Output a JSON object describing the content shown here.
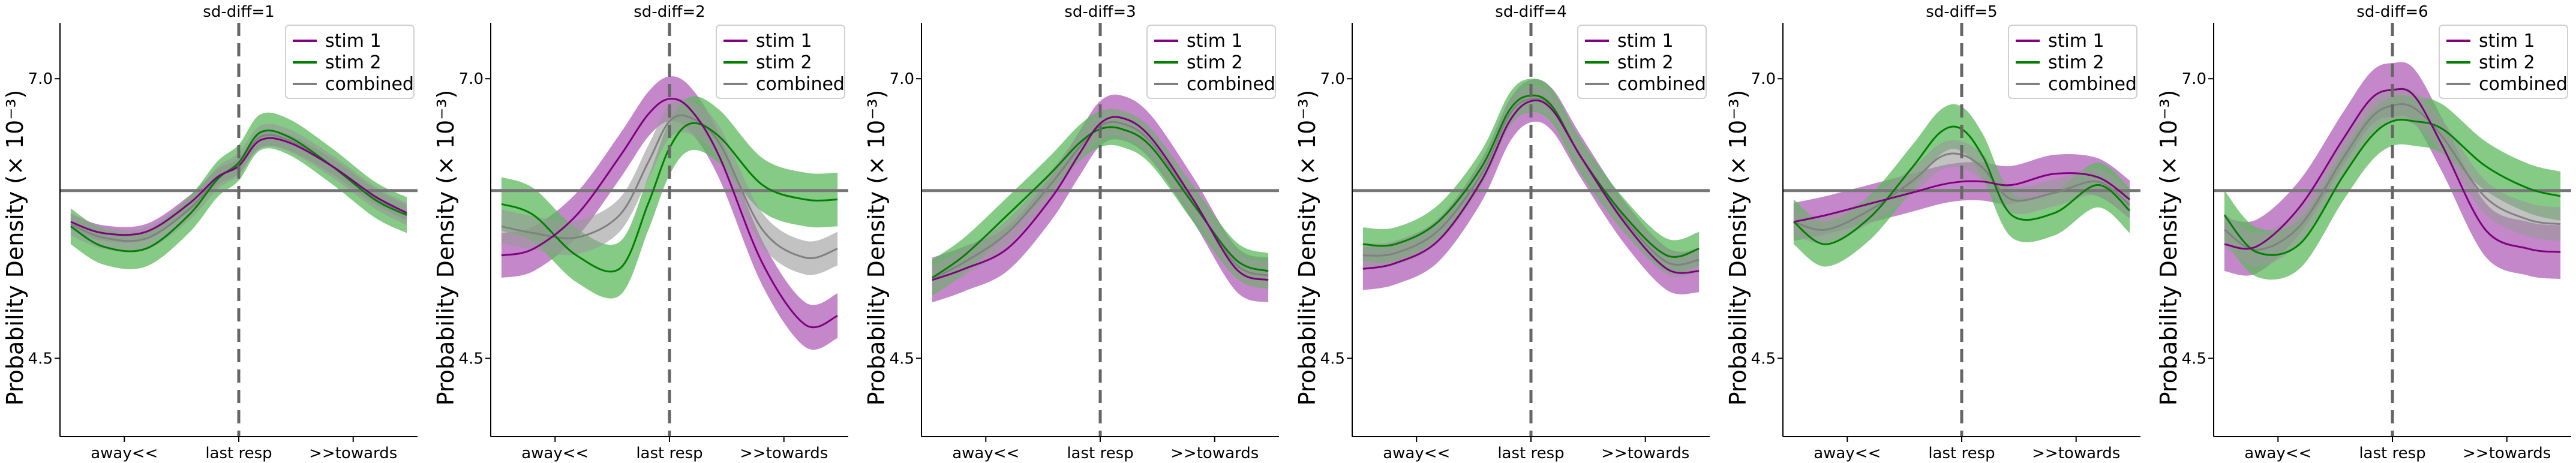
{
  "chart_data": {
    "type": "line",
    "layout": "1x6 small multiples, shared style",
    "ylabel": "Probability Density (× 10⁻³)",
    "yticks": [
      {
        "value": 7.0,
        "label": "7.0"
      },
      {
        "value": 4.5,
        "label": "4.5"
      }
    ],
    "ylim": [
      3.8,
      7.5
    ],
    "xlim": [
      0,
      1
    ],
    "xticks": [
      {
        "value": 0.18,
        "label": "away<<"
      },
      {
        "value": 0.5,
        "label": "last resp"
      },
      {
        "value": 0.82,
        "label": ">>towards"
      }
    ],
    "reference_lines": {
      "horizontal_y": 6.0,
      "vertical_x": 0.5,
      "vertical_style": "dashed"
    },
    "legend": {
      "position": "top-right",
      "entries": [
        {
          "key": "stim1",
          "label": "stim 1",
          "color": "#800080"
        },
        {
          "key": "stim2",
          "label": "stim 2",
          "color": "#008000"
        },
        {
          "key": "combined",
          "label": "combined",
          "color": "#808080"
        }
      ]
    },
    "x": [
      0.03,
      0.12,
      0.24,
      0.36,
      0.44,
      0.5,
      0.56,
      0.64,
      0.76,
      0.88,
      0.97
    ],
    "band_colors": {
      "stim1": "#b05fb8",
      "stim2": "#5cb85c",
      "combined": "#9a9a9a"
    },
    "panels": [
      {
        "title": "sd-diff=1",
        "series": {
          "stim1": {
            "mean": [
              5.72,
              5.62,
              5.63,
              5.88,
              6.12,
              6.22,
              6.45,
              6.43,
              6.22,
              5.95,
              5.8
            ],
            "band": 0.07
          },
          "stim2": {
            "mean": [
              5.68,
              5.5,
              5.48,
              5.78,
              6.1,
              6.25,
              6.52,
              6.48,
              6.22,
              5.92,
              5.78
            ],
            "band": 0.16
          },
          "combined": {
            "mean": [
              5.7,
              5.58,
              5.57,
              5.83,
              6.11,
              6.24,
              6.48,
              6.45,
              6.22,
              5.94,
              5.79
            ],
            "band": 0.1
          }
        }
      },
      {
        "title": "sd-diff=2",
        "series": {
          "stim1": {
            "mean": [
              5.42,
              5.48,
              5.78,
              6.3,
              6.68,
              6.82,
              6.72,
              6.3,
              5.35,
              4.8,
              4.88
            ],
            "band": 0.2
          },
          "stim2": {
            "mean": [
              5.88,
              5.78,
              5.42,
              5.3,
              5.88,
              6.38,
              6.6,
              6.48,
              6.05,
              5.92,
              5.92
            ],
            "band": 0.24
          },
          "combined": {
            "mean": [
              5.68,
              5.62,
              5.58,
              5.78,
              6.25,
              6.62,
              6.65,
              6.42,
              5.65,
              5.4,
              5.48
            ],
            "band": 0.15
          }
        }
      },
      {
        "title": "sd-diff=3",
        "series": {
          "stim1": {
            "mean": [
              5.2,
              5.3,
              5.48,
              5.92,
              6.32,
              6.6,
              6.65,
              6.48,
              5.92,
              5.3,
              5.2
            ],
            "band": 0.2
          },
          "stim2": {
            "mean": [
              5.22,
              5.42,
              5.78,
              6.15,
              6.42,
              6.55,
              6.55,
              6.4,
              5.88,
              5.38,
              5.28
            ],
            "band": 0.16
          },
          "combined": {
            "mean": [
              5.21,
              5.36,
              5.62,
              6.05,
              6.38,
              6.58,
              6.6,
              6.44,
              5.9,
              5.34,
              5.24
            ],
            "band": 0.12
          }
        }
      },
      {
        "title": "sd-diff=4",
        "series": {
          "stim1": {
            "mean": [
              5.3,
              5.35,
              5.55,
              6.08,
              6.62,
              6.8,
              6.72,
              6.3,
              5.72,
              5.3,
              5.28
            ],
            "band": 0.19
          },
          "stim2": {
            "mean": [
              5.52,
              5.52,
              5.72,
              6.2,
              6.72,
              6.85,
              6.75,
              6.3,
              5.78,
              5.42,
              5.48
            ],
            "band": 0.15
          },
          "combined": {
            "mean": [
              5.42,
              5.44,
              5.64,
              6.14,
              6.68,
              6.82,
              6.74,
              6.3,
              5.75,
              5.36,
              5.38
            ],
            "band": 0.11
          }
        }
      },
      {
        "title": "sd-diff=5",
        "series": {
          "stim1": {
            "mean": [
              5.72,
              5.78,
              5.88,
              5.98,
              6.05,
              6.08,
              6.08,
              6.05,
              6.15,
              6.12,
              5.92
            ],
            "band": 0.17
          },
          "stim2": {
            "mean": [
              5.72,
              5.52,
              5.75,
              6.2,
              6.52,
              6.55,
              6.3,
              5.78,
              5.8,
              6.05,
              5.82
            ],
            "band": 0.2
          },
          "combined": {
            "mean": [
              5.72,
              5.65,
              5.82,
              6.08,
              6.3,
              6.32,
              6.2,
              5.92,
              5.98,
              6.08,
              5.87
            ],
            "band": 0.12
          }
        }
      },
      {
        "title": "sd-diff=6",
        "series": {
          "stim1": {
            "mean": [
              5.52,
              5.5,
              5.85,
              6.45,
              6.82,
              6.9,
              6.85,
              6.4,
              5.65,
              5.48,
              5.45
            ],
            "band": 0.24
          },
          "stim2": {
            "mean": [
              5.78,
              5.45,
              5.52,
              6.12,
              6.48,
              6.62,
              6.62,
              6.55,
              6.22,
              6.02,
              5.95
            ],
            "band": 0.22
          },
          "combined": {
            "mean": [
              5.65,
              5.47,
              5.68,
              6.28,
              6.65,
              6.76,
              6.74,
              6.48,
              5.94,
              5.74,
              5.7
            ],
            "band": 0.15
          }
        }
      }
    ]
  }
}
